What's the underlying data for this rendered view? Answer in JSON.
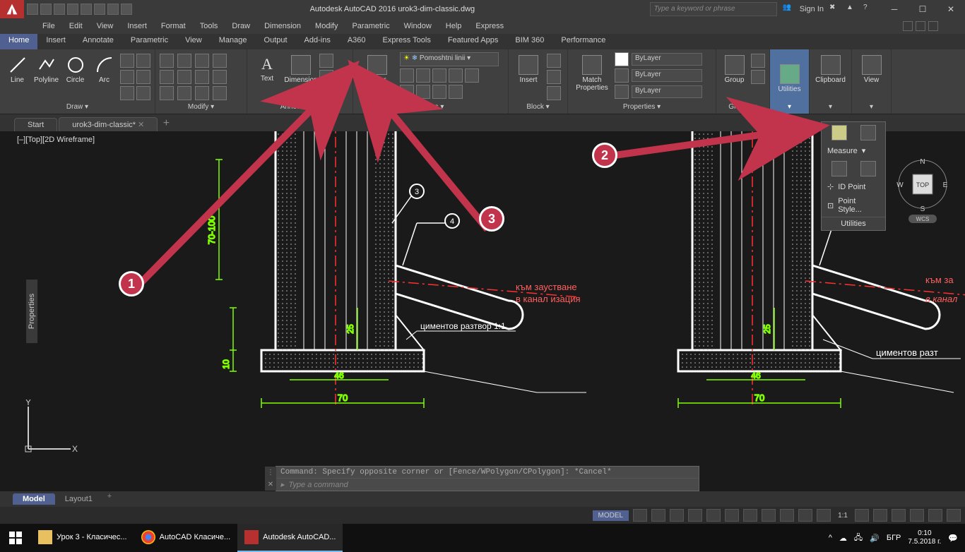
{
  "title": "Autodesk AutoCAD 2016   urok3-dim-classic.dwg",
  "search_placeholder": "Type a keyword or phrase",
  "sign_in": "Sign In",
  "menu": [
    "File",
    "Edit",
    "View",
    "Insert",
    "Format",
    "Tools",
    "Draw",
    "Dimension",
    "Modify",
    "Parametric",
    "Window",
    "Help",
    "Express"
  ],
  "ribbon_tabs": [
    "Home",
    "Insert",
    "Annotate",
    "Parametric",
    "View",
    "Manage",
    "Output",
    "Add-ins",
    "A360",
    "Express Tools",
    "Featured Apps",
    "BIM 360",
    "Performance"
  ],
  "active_ribbon_tab": "Home",
  "panels": {
    "draw": {
      "label": "Draw ▾",
      "buttons": [
        "Line",
        "Polyline",
        "Circle",
        "Arc"
      ]
    },
    "modify": {
      "label": "Modify ▾"
    },
    "annotation": {
      "label": "Annotation ▾",
      "text": "Text",
      "dimension": "Dimension"
    },
    "layers": {
      "label": "Layers ▾",
      "layer_props": "Layer\nProperties",
      "current_layer": "Pomoshtni linii"
    },
    "block": {
      "label": "Block ▾",
      "insert": "Insert"
    },
    "properties": {
      "label": "Properties ▾",
      "match": "Match\nProperties",
      "bylayer": "ByLayer"
    },
    "groups": {
      "label": "Groups ▾",
      "group": "Group"
    },
    "utilities": {
      "label": "Utilities",
      "measure": "Measure",
      "id_point": "ID Point",
      "point_style": "Point Style..."
    },
    "clipboard": {
      "label": "Clipboard"
    },
    "view": {
      "label": "View"
    }
  },
  "file_tabs": {
    "start": "Start",
    "current": "urok3-dim-classic*"
  },
  "view_label": "[–][Top][2D Wireframe]",
  "properties_handle": "Properties",
  "viewcube": {
    "top": "TOP",
    "n": "N",
    "s": "S",
    "e": "E",
    "w": "W",
    "wcs": "WCS"
  },
  "cmd_history": "Command: Specify opposite corner or [Fence/WPolygon/CPolygon]: *Cancel*",
  "cmd_prompt": "Type a command",
  "layout_tabs": [
    "Model",
    "Layout1"
  ],
  "status": {
    "model": "MODEL",
    "scale": "1:1"
  },
  "drawing": {
    "dim_vert1": "70-100",
    "dim_vert2": "25",
    "dim_vert3": "10",
    "dim_horiz1": "46",
    "dim_horiz2": "70",
    "label3": "3",
    "label4": "4",
    "text_flow1": "към заустване",
    "text_flow2": "в канал изация",
    "text_flow_r1": "към за",
    "text_flow_r2": "в канал",
    "text_mortar": "циментов разтвор 1:1",
    "text_mortar_r": "циментов разт",
    "colors": {
      "bg": "#1a1a1a",
      "line": "#ffffff",
      "dim_green": "#7fff00",
      "hatch": "#bbbbbb",
      "center_red": "#ff3030",
      "text_red": "#ff6060"
    }
  },
  "annotations": {
    "1": "1",
    "2": "2",
    "3": "3",
    "arrow_color": "#c1344b"
  },
  "taskbar": {
    "items": [
      "Урок 3 - Класичес...",
      "AutoCAD Класиче...",
      "Autodesk AutoCAD..."
    ],
    "lang": "БГР",
    "time": "0:10",
    "date": "7.5.2018 г."
  },
  "ucs": {
    "x": "X",
    "y": "Y"
  }
}
